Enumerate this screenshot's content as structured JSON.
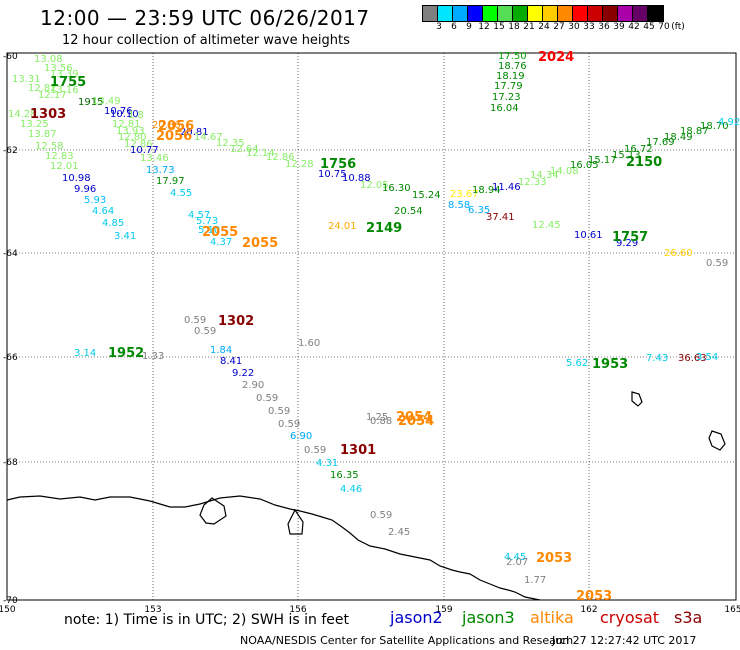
{
  "title": "12:00 — 23:59 UTC 06/26/2017",
  "subtitle": "12 hour collection of altimeter wave heights",
  "colorbar": {
    "unit": "(ft)",
    "colors": [
      "#808080",
      "#00e5ff",
      "#00aaff",
      "#0000ff",
      "#00ff00",
      "#55dd55",
      "#00aa00",
      "#ffff00",
      "#ffcc00",
      "#ff8800",
      "#ff0000",
      "#cc0000",
      "#880000",
      "#aa00aa",
      "#660066",
      "#000000"
    ],
    "labels": [
      "3",
      "6",
      "9",
      "12",
      "15",
      "18",
      "21",
      "24",
      "27",
      "30",
      "33",
      "36",
      "39",
      "42",
      "45",
      "70"
    ]
  },
  "axes": {
    "y_labels": [
      "-60",
      "-62",
      "-64",
      "-66",
      "-68",
      "-70"
    ],
    "x_labels": [
      "150",
      "153",
      "156",
      "159",
      "162",
      "165"
    ]
  },
  "note": "note:  1) Time is in UTC;  2) SWH is in feet",
  "legend": [
    {
      "name": "jason2",
      "color": "#0000cc"
    },
    {
      "name": "jason3",
      "color": "#008800"
    },
    {
      "name": "altika",
      "color": "#ff8800"
    },
    {
      "name": "cryosat",
      "color": "#cc0000"
    },
    {
      "name": "s3a",
      "color": "#880000"
    }
  ],
  "credit": "NOAA/NESDIS Center for Satellite Applications and Research",
  "timestamp": "Jun 27 12:27:42 UTC 2017",
  "values": [
    {
      "t": "13.08",
      "c": "#88ee66"
    },
    {
      "t": "13.31",
      "c": "#88ee66"
    },
    {
      "t": "13.56",
      "c": "#88ee66"
    },
    {
      "t": "13.39",
      "c": "#88ee66"
    },
    {
      "t": "12.82",
      "c": "#88ee66"
    },
    {
      "t": "13.16",
      "c": "#88ee66"
    },
    {
      "t": "12.17",
      "c": "#88ee66"
    },
    {
      "t": "1915",
      "c": "#006600"
    },
    {
      "t": "13.49",
      "c": "#88ee66"
    },
    {
      "t": "14.28",
      "c": "#88ee66"
    },
    {
      "t": "13.25",
      "c": "#88ee66"
    },
    {
      "t": "13.87",
      "c": "#88ee66"
    },
    {
      "t": "12.58",
      "c": "#88ee66"
    },
    {
      "t": "12.83",
      "c": "#88ee66"
    },
    {
      "t": "12.01",
      "c": "#88ee66"
    },
    {
      "t": "10.98",
      "c": "#0000cc"
    },
    {
      "t": "9.96",
      "c": "#0000cc"
    },
    {
      "t": "5.93",
      "c": "#00bbff"
    },
    {
      "t": "4.64",
      "c": "#00ccee"
    },
    {
      "t": "4.85",
      "c": "#00ccee"
    },
    {
      "t": "3.41",
      "c": "#00ccee"
    },
    {
      "t": "10.76",
      "c": "#0000cc"
    },
    {
      "t": "10.10",
      "c": "#0000cc"
    },
    {
      "t": "1.8",
      "c": "#88ee66"
    },
    {
      "t": "12.81",
      "c": "#88ee66"
    },
    {
      "t": "13.93",
      "c": "#88ee66"
    },
    {
      "t": "12.80",
      "c": "#88ee66"
    },
    {
      "t": "20.86",
      "c": "#ff8800"
    },
    {
      "t": "20.81",
      "c": "#0000cc"
    },
    {
      "t": "12.86",
      "c": "#88ee66"
    },
    {
      "t": "10.77",
      "c": "#0000cc"
    },
    {
      "t": "13.46",
      "c": "#88ee66"
    },
    {
      "t": "13.73",
      "c": "#00aaff"
    },
    {
      "t": "17.97",
      "c": "#008800"
    },
    {
      "t": "4.55",
      "c": "#00ccee"
    },
    {
      "t": "14.67",
      "c": "#88ee66"
    },
    {
      "t": "12.35",
      "c": "#88ee66"
    },
    {
      "t": "12.64",
      "c": "#88ee66"
    },
    {
      "t": "12.14",
      "c": "#88ee66"
    },
    {
      "t": "12.86",
      "c": "#88ee66"
    },
    {
      "t": "12.28",
      "c": "#88ee66"
    },
    {
      "t": "10.75",
      "c": "#0000cc"
    },
    {
      "t": "10.88",
      "c": "#0000cc"
    },
    {
      "t": "12.05",
      "c": "#88ee66"
    },
    {
      "t": "16.30",
      "c": "#008800"
    },
    {
      "t": "15.24",
      "c": "#008800"
    },
    {
      "t": "20.54",
      "c": "#008800"
    },
    {
      "t": "24.01",
      "c": "#ffaa00"
    },
    {
      "t": "4.57",
      "c": "#00ccee"
    },
    {
      "t": "5.73",
      "c": "#00ccee"
    },
    {
      "t": "5.10",
      "c": "#00ccee"
    },
    {
      "t": "4.37",
      "c": "#00ccee"
    },
    {
      "t": "17.50",
      "c": "#00aa00"
    },
    {
      "t": "18.76",
      "c": "#008800"
    },
    {
      "t": "18.19",
      "c": "#008800"
    },
    {
      "t": "17.79",
      "c": "#008800"
    },
    {
      "t": "17.23",
      "c": "#008800"
    },
    {
      "t": "16.04",
      "c": "#008800"
    },
    {
      "t": "23.67",
      "c": "#ffee00"
    },
    {
      "t": "8.58",
      "c": "#00aaff"
    },
    {
      "t": "18.94",
      "c": "#008800"
    },
    {
      "t": "6.35",
      "c": "#00aaff"
    },
    {
      "t": "11.46",
      "c": "#0000cc"
    },
    {
      "t": "37.41",
      "c": "#880000"
    },
    {
      "t": "12.33",
      "c": "#88ee66"
    },
    {
      "t": "14.34",
      "c": "#88ee66"
    },
    {
      "t": "14.08",
      "c": "#88ee66"
    },
    {
      "t": "16.05",
      "c": "#008800"
    },
    {
      "t": "15.17",
      "c": "#008800"
    },
    {
      "t": "15.13",
      "c": "#008800"
    },
    {
      "t": "16.72",
      "c": "#008800"
    },
    {
      "t": "17.69",
      "c": "#008800"
    },
    {
      "t": "18.49",
      "c": "#008800"
    },
    {
      "t": "18.87",
      "c": "#008800"
    },
    {
      "t": "18.70",
      "c": "#008800"
    },
    {
      "t": "4.92",
      "c": "#00ccee"
    },
    {
      "t": "12.45",
      "c": "#88ee66"
    },
    {
      "t": "10.61",
      "c": "#0000cc"
    },
    {
      "t": "9.29",
      "c": "#0000cc"
    },
    {
      "t": "26.60",
      "c": "#ffcc00"
    },
    {
      "t": "0.59",
      "c": "#808080"
    },
    {
      "t": "0.59",
      "c": "#808080"
    },
    {
      "t": "0.59",
      "c": "#808080"
    },
    {
      "t": "1.84",
      "c": "#00aaff"
    },
    {
      "t": "8.41",
      "c": "#0000cc"
    },
    {
      "t": "9.22",
      "c": "#0000cc"
    },
    {
      "t": "2.90",
      "c": "#808080"
    },
    {
      "t": "0.59",
      "c": "#808080"
    },
    {
      "t": "0.59",
      "c": "#808080"
    },
    {
      "t": "0.59",
      "c": "#808080"
    },
    {
      "t": "6.90",
      "c": "#00aaff"
    },
    {
      "t": "0.59",
      "c": "#808080"
    },
    {
      "t": "4.31",
      "c": "#00ccee"
    },
    {
      "t": "16.35",
      "c": "#008800"
    },
    {
      "t": "4.46",
      "c": "#00ccee"
    },
    {
      "t": "0.59",
      "c": "#808080"
    },
    {
      "t": "2.45",
      "c": "#808080"
    },
    {
      "t": "1.60",
      "c": "#808080"
    },
    {
      "t": "3.14",
      "c": "#00ccee"
    },
    {
      "t": "1.33",
      "c": "#808080"
    },
    {
      "t": "1.25",
      "c": "#808080"
    },
    {
      "t": "0.88",
      "c": "#808080"
    },
    {
      "t": "5.62",
      "c": "#00ccee"
    },
    {
      "t": "7.43",
      "c": "#00ccee"
    },
    {
      "t": "36.63",
      "c": "#880000"
    },
    {
      "t": "3.54",
      "c": "#00ccee"
    },
    {
      "t": "4.45",
      "c": "#00ccee"
    },
    {
      "t": "2.07",
      "c": "#808080"
    },
    {
      "t": "1.77",
      "c": "#808080"
    }
  ],
  "passes": [
    {
      "t": "1755",
      "c": "#008800"
    },
    {
      "t": "1303",
      "c": "#880000"
    },
    {
      "t": "2056",
      "c": "#ff8800"
    },
    {
      "t": "2056",
      "c": "#ff8800"
    },
    {
      "t": "1756",
      "c": "#008800"
    },
    {
      "t": "2055",
      "c": "#ff8800"
    },
    {
      "t": "2055",
      "c": "#ff8800"
    },
    {
      "t": "2149",
      "c": "#008800"
    },
    {
      "t": "2024",
      "c": "#ff0000"
    },
    {
      "t": "2150",
      "c": "#008800"
    },
    {
      "t": "1757",
      "c": "#008800"
    },
    {
      "t": "1302",
      "c": "#880000"
    },
    {
      "t": "1952",
      "c": "#008800"
    },
    {
      "t": "1953",
      "c": "#008800"
    },
    {
      "t": "2054",
      "c": "#ff8800"
    },
    {
      "t": "2054",
      "c": "#ff8800"
    },
    {
      "t": "1301",
      "c": "#880000"
    },
    {
      "t": "2053",
      "c": "#ff8800"
    },
    {
      "t": "2053",
      "c": "#ff8800"
    }
  ]
}
